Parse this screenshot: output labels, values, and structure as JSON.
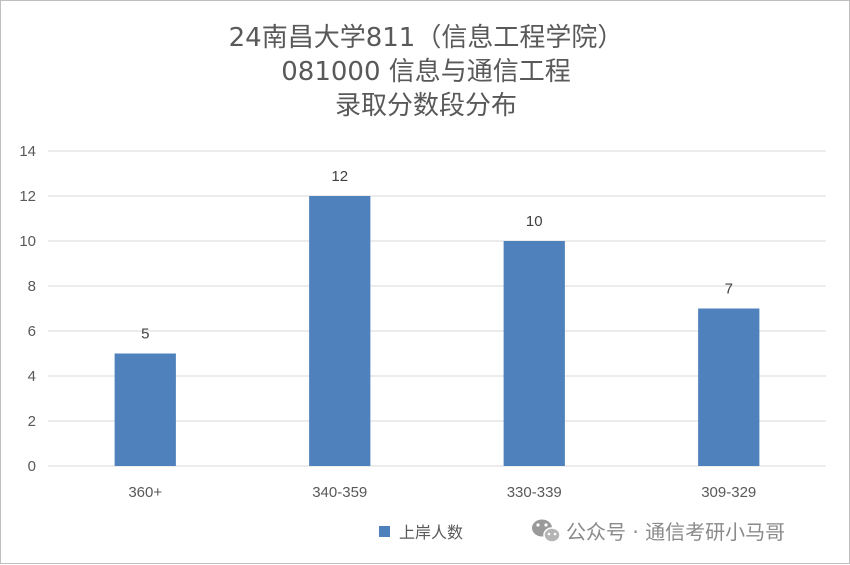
{
  "chart_data": {
    "type": "bar",
    "title": [
      "24南昌大学811（信息工程学院）",
      "081000 信息与通信工程",
      "录取分数段分布"
    ],
    "categories": [
      "360+",
      "340-359",
      "330-339",
      "309-329"
    ],
    "series": [
      {
        "name": "上岸人数",
        "values": [
          5,
          12,
          10,
          7
        ],
        "color": "#4f81bd"
      }
    ],
    "ylim": [
      0,
      14
    ],
    "yticks": [
      0,
      2,
      4,
      6,
      8,
      10,
      12,
      14
    ],
    "grid": true,
    "legend": "bottom",
    "colors": {
      "gridline": "#d9d9d9",
      "text": "#595959",
      "border": "#bfbfbf"
    }
  },
  "watermark": {
    "icon": "wechat-icon",
    "text": "公众号 · 通信考研小马哥"
  }
}
